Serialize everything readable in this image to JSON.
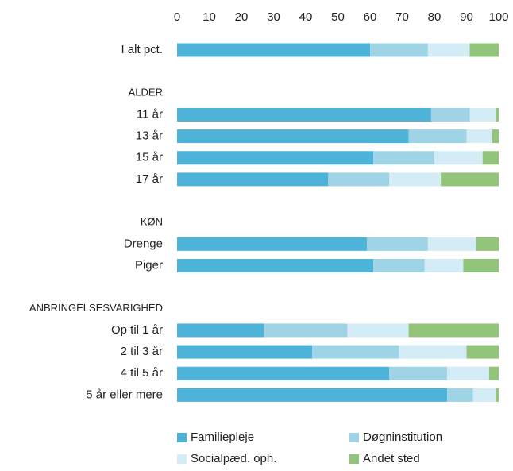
{
  "chart_data": {
    "type": "stacked_barh",
    "categories": [
      "I alt pct.",
      null,
      "ALDER",
      "11 år",
      "13 år",
      "15 år",
      "17 år",
      null,
      "KØN",
      "Drenge",
      "Piger",
      null,
      "ANBRINGELSESVARIGHED",
      "Op til 1 år",
      "2 til 3 år",
      "4 til 5 år",
      "5 år eller mere"
    ],
    "series": [
      {
        "name": "Familiepleje",
        "color": "#4db3d9",
        "values": [
          60,
          null,
          null,
          79,
          72,
          61,
          47,
          null,
          null,
          59,
          61,
          null,
          null,
          27,
          42,
          66,
          84
        ]
      },
      {
        "name": "Døgninstitution",
        "color": "#9fd4e7",
        "values": [
          18,
          null,
          null,
          12,
          18,
          19,
          19,
          null,
          null,
          19,
          16,
          null,
          null,
          26,
          27,
          18,
          8
        ]
      },
      {
        "name": "Socialpæd. oph.",
        "color": "#d3ecf6",
        "values": [
          13,
          null,
          null,
          8,
          8,
          15,
          16,
          null,
          null,
          15,
          12,
          null,
          null,
          19,
          21,
          13,
          7
        ]
      },
      {
        "name": "Andet sted",
        "color": "#92c47a",
        "values": [
          9,
          null,
          null,
          1,
          2,
          5,
          18,
          null,
          null,
          7,
          11,
          null,
          null,
          28,
          10,
          3,
          1
        ]
      }
    ],
    "xlim": [
      0,
      100
    ],
    "xticks": [
      0,
      10,
      20,
      30,
      40,
      50,
      60,
      70,
      80,
      90,
      100
    ],
    "legend": "bottom"
  }
}
